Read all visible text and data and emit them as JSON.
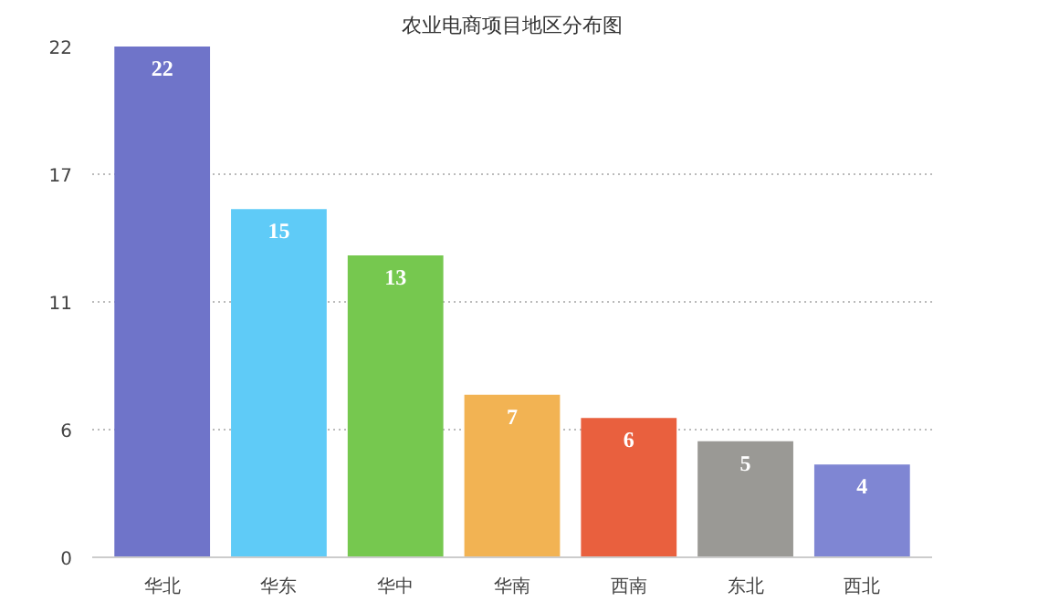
{
  "chart_data": {
    "type": "bar",
    "title": "农业电商项目地区分布图",
    "categories": [
      "华北",
      "华东",
      "华中",
      "华南",
      "西南",
      "东北",
      "西北"
    ],
    "values": [
      22,
      15,
      13,
      7,
      6,
      5,
      4
    ],
    "colors": [
      "#6f74c9",
      "#5fcbf7",
      "#76c84f",
      "#f2b353",
      "#e9603e",
      "#9a9995",
      "#7f86d3"
    ],
    "ylim": [
      0,
      22
    ],
    "yticks": [
      0,
      {
        "value": 5.5,
        "label": "6"
      },
      11,
      {
        "value": 16.5,
        "label": "17"
      },
      22
    ],
    "grid": "y",
    "data_labels": true
  }
}
